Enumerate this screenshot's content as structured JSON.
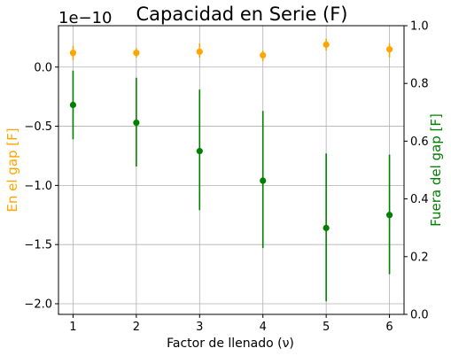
{
  "chart_data": {
    "type": "scatter",
    "title": "Capacidad en Serie (F)",
    "xlabel": "Factor de llenado (ν)",
    "ylabel_left": "En el gap [F]",
    "ylabel_right": "Fuera del gap [F]",
    "offset_text": "1e−10",
    "x": [
      1,
      2,
      3,
      4,
      5,
      6
    ],
    "xticks": [
      "1",
      "2",
      "3",
      "4",
      "5",
      "6"
    ],
    "xlim": [
      0.77,
      6.23
    ],
    "grid": true,
    "left_axis": {
      "ylim": [
        -2.09,
        0.35
      ],
      "ticks": [
        0.0,
        -0.5,
        -1.0,
        -1.5,
        -2.0
      ],
      "tick_labels": [
        "0.0",
        "−0.5",
        "−1.0",
        "−1.5",
        "−2.0"
      ]
    },
    "right_axis": {
      "ylim": [
        0.0,
        1.0
      ],
      "ticks": [
        0.0,
        0.2,
        0.4,
        0.6,
        0.8,
        1.0
      ],
      "tick_labels": [
        "0.0",
        "0.2",
        "0.4",
        "0.6",
        "0.8",
        "1.0"
      ]
    },
    "series": [
      {
        "axis": "left",
        "color": "#ffa500",
        "values": [
          0.12,
          0.12,
          0.13,
          0.1,
          0.19,
          0.15
        ],
        "err_low": [
          0.06,
          0.04,
          0.05,
          0.05,
          0.05,
          0.07
        ],
        "err_high": [
          0.06,
          0.04,
          0.07,
          0.04,
          0.05,
          0.05
        ]
      },
      {
        "axis": "left",
        "color": "#008000",
        "values": [
          -0.32,
          -0.47,
          -0.71,
          -0.96,
          -1.36,
          -1.25
        ],
        "err_low": [
          0.29,
          0.37,
          0.5,
          0.57,
          0.62,
          0.5
        ],
        "err_high": [
          0.29,
          0.38,
          0.52,
          0.59,
          0.63,
          0.51
        ]
      }
    ],
    "colors": {
      "left_label": "#ffa500",
      "right_label": "#008000",
      "grid": "#b0b0b0",
      "axis": "#000000"
    }
  }
}
